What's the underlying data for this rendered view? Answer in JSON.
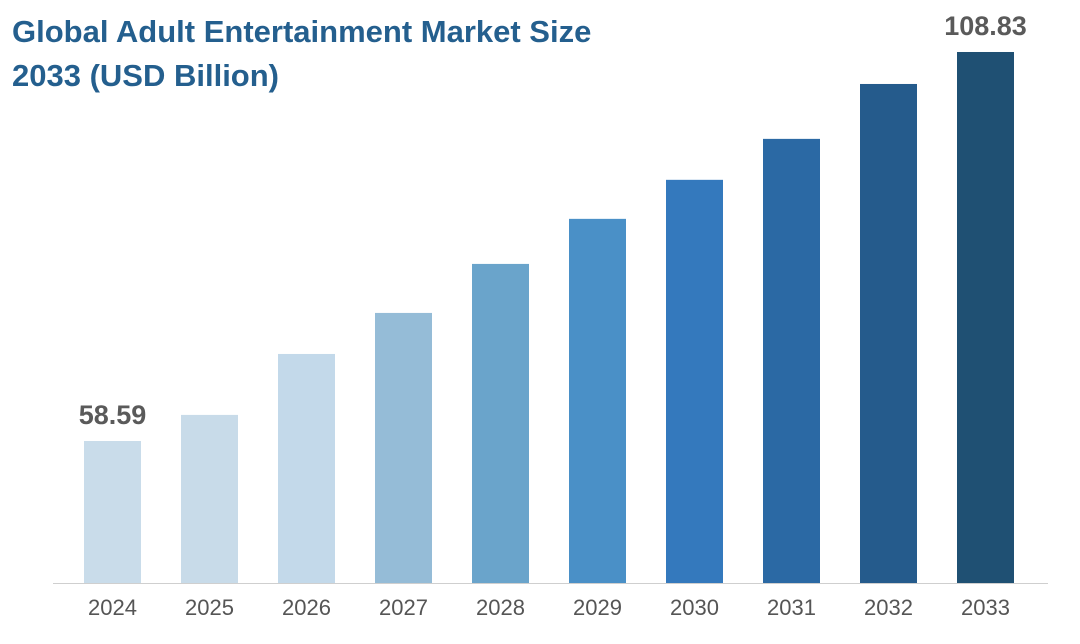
{
  "chart_data": {
    "type": "bar",
    "title_line1": "Global Adult Entertainment Market Size",
    "title_line2": "2033 (USD Billion)",
    "xlabel": "",
    "ylabel": "",
    "categories": [
      "2024",
      "2025",
      "2026",
      "2027",
      "2028",
      "2029",
      "2030",
      "2031",
      "2032",
      "2033"
    ],
    "values": [
      58.59,
      61.96,
      69.83,
      75.13,
      81.46,
      87.28,
      92.32,
      97.61,
      104.7,
      108.83
    ],
    "data_labels": {
      "0": "58.59",
      "9": "108.83"
    },
    "colors": [
      "#c9dcea",
      "#c8dbe9",
      "#c3d9ea",
      "#95bcd7",
      "#6aa4cb",
      "#4a90c7",
      "#3479bd",
      "#2b69a4",
      "#255b8c",
      "#1f5073"
    ],
    "ylim": [
      40.25,
      112
    ],
    "grid": false,
    "legend": "none"
  }
}
